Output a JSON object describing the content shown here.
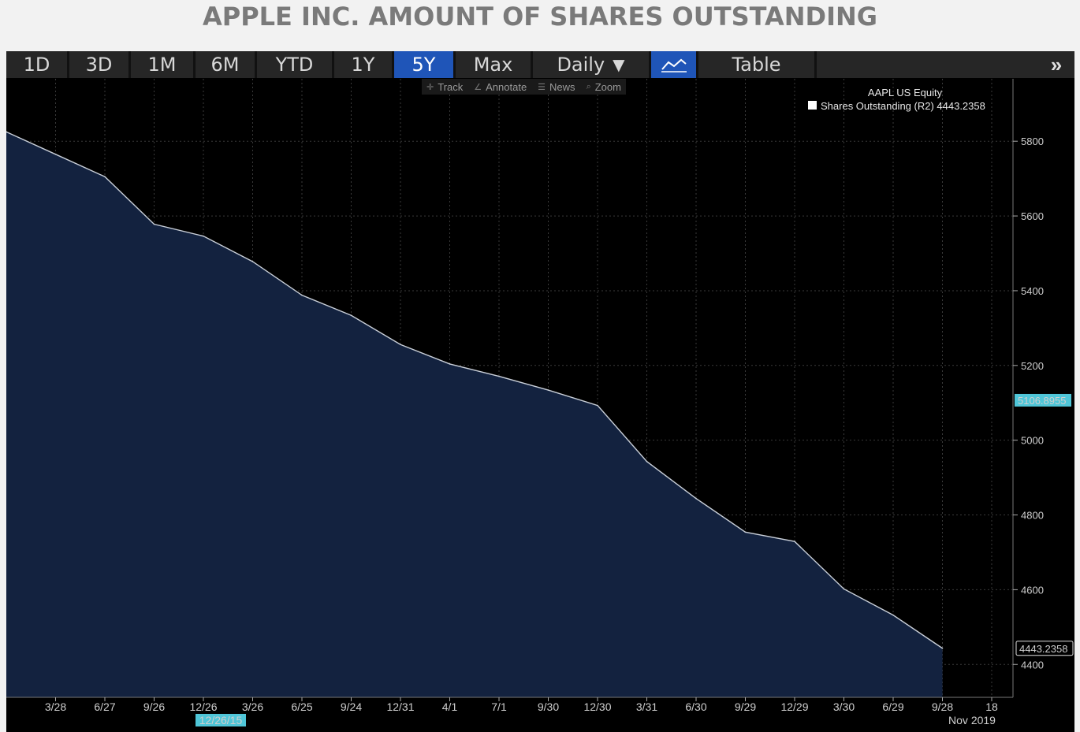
{
  "title": "APPLE INC. AMOUNT OF SHARES OUTSTANDING",
  "toolbar": {
    "ranges": [
      "1D",
      "3D",
      "1M",
      "6M",
      "YTD",
      "1Y",
      "5Y",
      "Max"
    ],
    "active_range": "5Y",
    "frequency": "Daily",
    "frequency_arrow": "▼",
    "table_label": "Table",
    "more_label": "»"
  },
  "subtools": {
    "track": "Track",
    "annotate": "Annotate",
    "news": "News",
    "zoom": "Zoom"
  },
  "colors": {
    "background": "#000000",
    "area_fill": "#13223f",
    "line": "#c9cfd8",
    "grid": "#3a3a3a",
    "label_highlight": "#4fc6d8",
    "active_tab": "#1f55b8"
  },
  "chart_data": {
    "type": "area",
    "legend": {
      "title": "AAPL US Equity",
      "series_label": "Shares Outstanding",
      "axis_tag": "(R2)",
      "last_value": "4443.2358"
    },
    "x_ticks": [
      "3/28",
      "6/27",
      "9/26",
      "12/26",
      "3/26",
      "6/25",
      "9/24",
      "12/31",
      "4/1",
      "7/1",
      "9/30",
      "12/30",
      "3/31",
      "6/30",
      "9/29",
      "12/29",
      "3/30",
      "6/29",
      "9/28",
      "18"
    ],
    "x_secondary_labels": {
      "start_marker": "12/26/15",
      "end": "Nov 2019"
    },
    "y_ticks": [
      4400,
      4600,
      4800,
      5000,
      5200,
      5400,
      5600,
      5800
    ],
    "ylim": [
      4312,
      5967
    ],
    "y_axis_side": "right",
    "grid": true,
    "value_markers": [
      "5106.8955",
      "4443.2358"
    ],
    "series": [
      {
        "name": "Shares Outstanding",
        "x": [
          "12/26/14",
          "3/28/15",
          "6/27/15",
          "9/26/15",
          "12/26/15",
          "3/26/16",
          "6/25/16",
          "9/24/16",
          "12/31/16",
          "4/1/17",
          "7/1/17",
          "9/30/17",
          "12/30/17",
          "3/31/18",
          "6/30/18",
          "9/29/18",
          "12/29/18",
          "3/30/19",
          "6/29/19",
          "9/28/19"
        ],
        "values": [
          5825,
          5765,
          5705,
          5578,
          5546,
          5478,
          5388,
          5334,
          5256,
          5204,
          5171,
          5134,
          5093,
          4943,
          4844,
          4754,
          4729,
          4602,
          4532,
          4443.2358
        ]
      }
    ]
  }
}
